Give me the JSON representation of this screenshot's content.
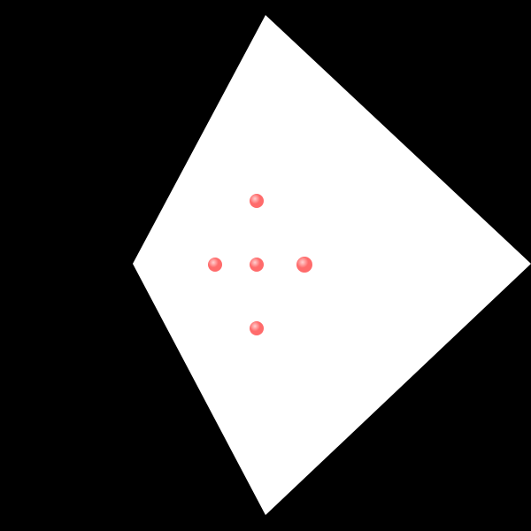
{
  "scene": {
    "background_color": "#000000",
    "shape_color": "#ffffff",
    "dot_color": "#ff6b6b",
    "dot_highlight_color": "#ffd0d0",
    "dot_count": 5
  }
}
